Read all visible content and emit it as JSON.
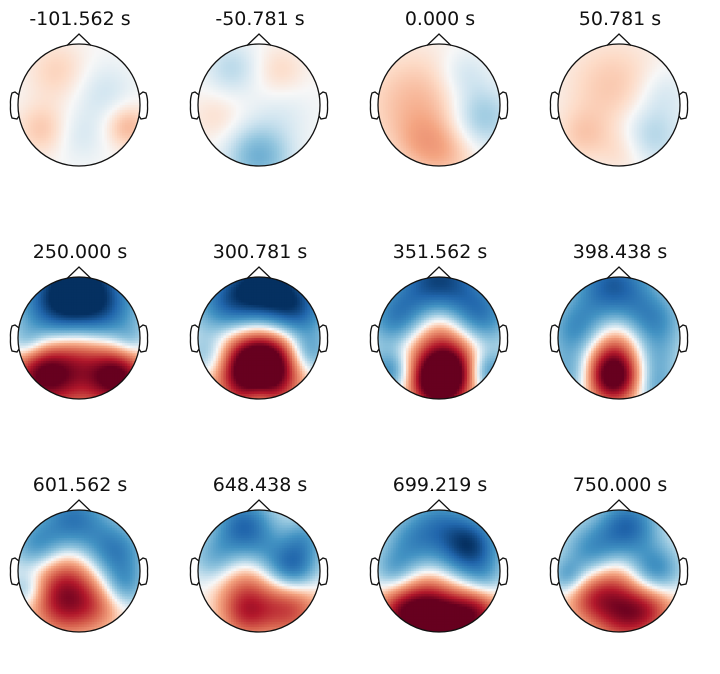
{
  "figure": {
    "colormap": "RdBu_r",
    "colors": {
      "outline": "#111111",
      "background": "#ffffff"
    },
    "panels": [
      {
        "title": "-101.562 s",
        "blobs": [
          [
            -0.35,
            -0.55,
            0.35,
            0.12
          ],
          [
            0.8,
            0.35,
            0.25,
            0.2
          ],
          [
            -0.6,
            0.4,
            0.3,
            0.15
          ],
          [
            0.4,
            -0.2,
            0.35,
            -0.1
          ],
          [
            0.0,
            0.5,
            0.3,
            -0.08
          ]
        ]
      },
      {
        "title": "-50.781 s",
        "blobs": [
          [
            0.0,
            0.85,
            0.35,
            -0.35
          ],
          [
            -0.45,
            -0.6,
            0.3,
            -0.15
          ],
          [
            0.35,
            -0.55,
            0.3,
            0.1
          ],
          [
            -0.7,
            0.2,
            0.3,
            0.08
          ],
          [
            0.4,
            0.1,
            0.35,
            -0.06
          ]
        ]
      },
      {
        "title": "0.000 s",
        "blobs": [
          [
            -0.35,
            0.0,
            0.6,
            0.2
          ],
          [
            0.1,
            0.8,
            0.35,
            0.15
          ],
          [
            0.7,
            0.2,
            0.35,
            -0.25
          ],
          [
            0.4,
            -0.5,
            0.3,
            -0.12
          ],
          [
            -0.3,
            0.6,
            0.3,
            0.1
          ]
        ]
      },
      {
        "title": "50.781 s",
        "blobs": [
          [
            -0.1,
            -0.3,
            0.55,
            0.15
          ],
          [
            -0.6,
            0.5,
            0.3,
            0.12
          ],
          [
            0.5,
            0.5,
            0.35,
            -0.2
          ],
          [
            0.7,
            -0.2,
            0.3,
            -0.1
          ],
          [
            0.1,
            0.75,
            0.3,
            0.1
          ]
        ]
      },
      {
        "title": "250.000 s",
        "blobs": [
          [
            0.0,
            -0.85,
            0.55,
            -1.0
          ],
          [
            -0.4,
            -0.4,
            0.45,
            -0.45
          ],
          [
            0.45,
            -0.35,
            0.4,
            -0.35
          ],
          [
            -0.6,
            0.6,
            0.35,
            0.85
          ],
          [
            0.65,
            0.65,
            0.32,
            0.9
          ],
          [
            0.0,
            0.55,
            0.5,
            0.55
          ],
          [
            0.0,
            0.15,
            0.35,
            0.25
          ],
          [
            -0.85,
            0.1,
            0.2,
            -0.25
          ],
          [
            0.85,
            0.05,
            0.2,
            -0.2
          ]
        ]
      },
      {
        "title": "300.781 s",
        "blobs": [
          [
            0.1,
            -0.85,
            0.45,
            -1.0
          ],
          [
            -0.55,
            -0.55,
            0.4,
            -0.55
          ],
          [
            0.65,
            -0.45,
            0.35,
            -0.6
          ],
          [
            0.0,
            0.65,
            0.4,
            1.1
          ],
          [
            -0.2,
            0.3,
            0.4,
            0.55
          ],
          [
            0.3,
            0.25,
            0.35,
            0.4
          ],
          [
            -0.8,
            0.3,
            0.25,
            -0.35
          ],
          [
            0.8,
            0.25,
            0.25,
            -0.45
          ],
          [
            0.0,
            0.97,
            0.2,
            -0.4
          ]
        ]
      },
      {
        "title": "351.562 s",
        "blobs": [
          [
            0.0,
            -0.9,
            0.5,
            -0.95
          ],
          [
            -0.7,
            -0.3,
            0.35,
            -0.55
          ],
          [
            0.7,
            -0.35,
            0.35,
            -0.55
          ],
          [
            0.0,
            0.75,
            0.3,
            1.15
          ],
          [
            0.0,
            0.2,
            0.45,
            0.65
          ],
          [
            0.25,
            0.5,
            0.3,
            0.4
          ],
          [
            -0.8,
            0.55,
            0.25,
            -0.55
          ],
          [
            0.8,
            0.55,
            0.25,
            -0.55
          ],
          [
            0.0,
            -0.35,
            0.3,
            0.2
          ]
        ]
      },
      {
        "title": "398.438 s",
        "blobs": [
          [
            -0.1,
            -0.85,
            0.45,
            -0.8
          ],
          [
            -0.65,
            -0.1,
            0.35,
            -0.6
          ],
          [
            0.55,
            -0.25,
            0.35,
            -0.55
          ],
          [
            -0.1,
            0.65,
            0.3,
            1.0
          ],
          [
            -0.1,
            0.15,
            0.42,
            0.6
          ],
          [
            0.55,
            0.4,
            0.3,
            -0.35
          ],
          [
            -0.75,
            0.6,
            0.3,
            -0.4
          ],
          [
            0.6,
            0.85,
            0.25,
            -0.3
          ]
        ]
      },
      {
        "title": "601.562 s",
        "blobs": [
          [
            -0.1,
            -0.85,
            0.4,
            -0.65
          ],
          [
            0.6,
            -0.3,
            0.35,
            -0.6
          ],
          [
            -0.7,
            -0.4,
            0.3,
            -0.45
          ],
          [
            -0.2,
            0.15,
            0.4,
            0.55
          ],
          [
            -0.25,
            0.6,
            0.35,
            0.5
          ],
          [
            0.3,
            0.6,
            0.3,
            0.3
          ],
          [
            0.75,
            0.25,
            0.25,
            -0.35
          ],
          [
            -0.85,
            0.3,
            0.2,
            -0.3
          ]
        ]
      },
      {
        "title": "648.438 s",
        "blobs": [
          [
            -0.25,
            -0.75,
            0.35,
            -0.7
          ],
          [
            0.55,
            -0.05,
            0.3,
            -0.7
          ],
          [
            -0.7,
            -0.2,
            0.3,
            -0.35
          ],
          [
            0.5,
            0.6,
            0.35,
            0.6
          ],
          [
            -0.25,
            0.2,
            0.35,
            0.35
          ],
          [
            -0.2,
            0.7,
            0.3,
            0.55
          ],
          [
            0.1,
            -0.3,
            0.3,
            -0.2
          ],
          [
            0.75,
            -0.55,
            0.25,
            -0.35
          ]
        ]
      },
      {
        "title": "699.219 s",
        "blobs": [
          [
            0.5,
            -0.4,
            0.35,
            -0.9
          ],
          [
            -0.45,
            -0.45,
            0.35,
            -0.45
          ],
          [
            0.0,
            0.85,
            0.35,
            1.1
          ],
          [
            -0.6,
            0.7,
            0.3,
            0.75
          ],
          [
            0.6,
            0.7,
            0.3,
            0.75
          ],
          [
            -0.2,
            0.35,
            0.3,
            0.3
          ],
          [
            0.0,
            -0.85,
            0.35,
            -0.4
          ],
          [
            -0.75,
            0.0,
            0.25,
            -0.3
          ],
          [
            0.75,
            0.15,
            0.25,
            -0.25
          ]
        ]
      },
      {
        "title": "750.000 s",
        "blobs": [
          [
            0.15,
            -0.75,
            0.35,
            -0.7
          ],
          [
            -0.45,
            -0.3,
            0.35,
            -0.5
          ],
          [
            0.6,
            0.0,
            0.3,
            -0.55
          ],
          [
            0.1,
            0.7,
            0.35,
            0.75
          ],
          [
            -0.45,
            0.45,
            0.3,
            0.5
          ],
          [
            0.55,
            0.6,
            0.3,
            0.4
          ],
          [
            -0.1,
            0.1,
            0.3,
            0.3
          ],
          [
            -0.85,
            0.1,
            0.2,
            -0.35
          ]
        ]
      }
    ]
  }
}
